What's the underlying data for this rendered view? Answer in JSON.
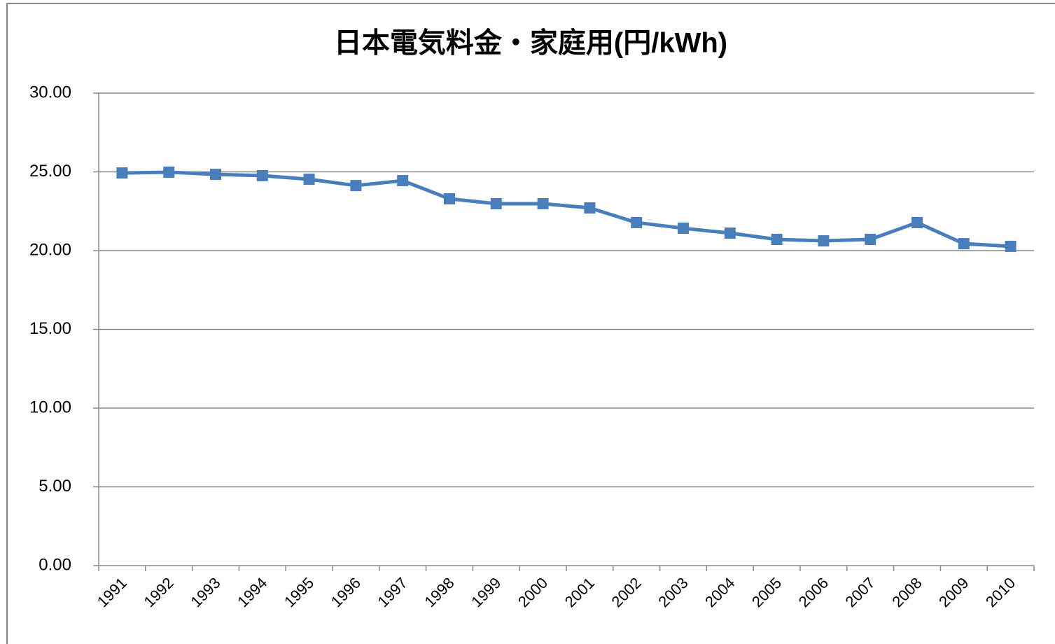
{
  "chart_data": {
    "type": "line",
    "title": "日本電気料金・家庭用(円/kWh)",
    "categories": [
      "1991",
      "1992",
      "1993",
      "1994",
      "1995",
      "1996",
      "1997",
      "1998",
      "1999",
      "2000",
      "2001",
      "2002",
      "2003",
      "2004",
      "2005",
      "2006",
      "2007",
      "2008",
      "2009",
      "2010"
    ],
    "series": [
      {
        "color": "#4a7ebb",
        "values": [
          24.93,
          24.98,
          24.84,
          24.76,
          24.53,
          24.13,
          24.44,
          23.29,
          22.98,
          22.98,
          22.71,
          21.78,
          21.42,
          21.11,
          20.71,
          20.62,
          20.71,
          21.78,
          20.44,
          20.27
        ]
      }
    ],
    "ylim": [
      0,
      30
    ],
    "yticks": [
      {
        "value": 0,
        "label": "0.00"
      },
      {
        "value": 5,
        "label": "5.00"
      },
      {
        "value": 10,
        "label": "10.00"
      },
      {
        "value": 15,
        "label": "15.00"
      },
      {
        "value": 20,
        "label": "20.00"
      },
      {
        "value": 25,
        "label": "25.00"
      },
      {
        "value": 30,
        "label": "30.00"
      }
    ],
    "grid": true
  }
}
